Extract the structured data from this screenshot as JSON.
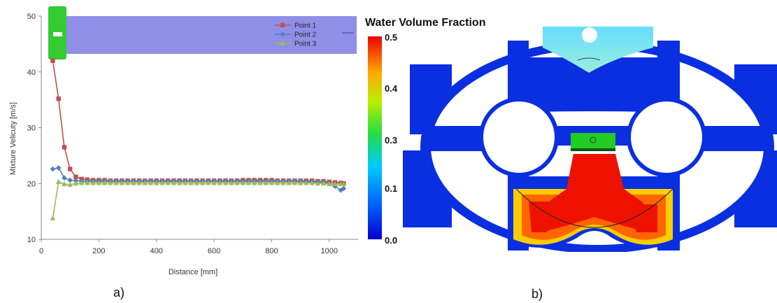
{
  "chart_data": {
    "type": "line",
    "xlabel": "Distance [mm]",
    "ylabel": "Mixture Velicuty [m/s]",
    "xlim": [
      0,
      1100
    ],
    "ylim": [
      10,
      50
    ],
    "xticks": [
      0,
      200,
      400,
      600,
      800,
      1000
    ],
    "yticks": [
      10,
      20,
      30,
      40,
      50
    ],
    "grid": false,
    "legend_position": "top-right",
    "series": [
      {
        "name": "Point 1",
        "color": "#c0504d",
        "marker": "square",
        "x": [
          40,
          60,
          80,
          100,
          120,
          140,
          160,
          180,
          200,
          220,
          240,
          260,
          280,
          300,
          320,
          340,
          360,
          380,
          400,
          420,
          440,
          460,
          480,
          500,
          520,
          540,
          560,
          580,
          600,
          620,
          640,
          660,
          680,
          700,
          720,
          740,
          760,
          780,
          800,
          820,
          840,
          860,
          880,
          900,
          920,
          940,
          960,
          980,
          1000,
          1020,
          1040,
          1050
        ],
        "y": [
          42.0,
          35.2,
          26.5,
          22.6,
          21.2,
          20.8,
          20.7,
          20.6,
          20.6,
          20.6,
          20.5,
          20.5,
          20.5,
          20.5,
          20.5,
          20.5,
          20.5,
          20.5,
          20.5,
          20.5,
          20.5,
          20.5,
          20.5,
          20.5,
          20.5,
          20.5,
          20.5,
          20.5,
          20.5,
          20.5,
          20.5,
          20.5,
          20.5,
          20.6,
          20.6,
          20.6,
          20.6,
          20.6,
          20.6,
          20.5,
          20.5,
          20.5,
          20.5,
          20.5,
          20.5,
          20.5,
          20.4,
          20.4,
          20.3,
          20.2,
          20.1,
          20.0
        ]
      },
      {
        "name": "Point 2",
        "color": "#4f81bd",
        "marker": "diamond",
        "x": [
          40,
          60,
          80,
          100,
          120,
          140,
          160,
          180,
          200,
          220,
          240,
          260,
          280,
          300,
          320,
          340,
          360,
          380,
          400,
          420,
          440,
          460,
          480,
          500,
          520,
          540,
          560,
          580,
          600,
          620,
          640,
          660,
          680,
          700,
          720,
          740,
          760,
          780,
          800,
          820,
          840,
          860,
          880,
          900,
          920,
          940,
          960,
          980,
          1000,
          1020,
          1040,
          1050
        ],
        "y": [
          22.6,
          22.8,
          21.0,
          20.6,
          20.5,
          20.4,
          20.4,
          20.4,
          20.4,
          20.4,
          20.4,
          20.4,
          20.4,
          20.4,
          20.4,
          20.4,
          20.4,
          20.4,
          20.4,
          20.4,
          20.4,
          20.4,
          20.4,
          20.4,
          20.4,
          20.4,
          20.4,
          20.4,
          20.4,
          20.4,
          20.4,
          20.4,
          20.4,
          20.4,
          20.4,
          20.4,
          20.4,
          20.4,
          20.4,
          20.4,
          20.4,
          20.4,
          20.4,
          20.4,
          20.3,
          20.3,
          20.3,
          20.2,
          20.1,
          19.5,
          18.8,
          19.1
        ]
      },
      {
        "name": "Point 3",
        "color": "#9bbb59",
        "marker": "triangle",
        "x": [
          40,
          60,
          80,
          100,
          120,
          140,
          160,
          180,
          200,
          220,
          240,
          260,
          280,
          300,
          320,
          340,
          360,
          380,
          400,
          420,
          440,
          460,
          480,
          500,
          520,
          540,
          560,
          580,
          600,
          620,
          640,
          660,
          680,
          700,
          720,
          740,
          760,
          780,
          800,
          820,
          840,
          860,
          880,
          900,
          920,
          940,
          960,
          980,
          1000,
          1020,
          1040,
          1050
        ],
        "y": [
          13.8,
          20.3,
          19.9,
          19.8,
          20.0,
          20.1,
          20.1,
          20.1,
          20.1,
          20.1,
          20.1,
          20.1,
          20.1,
          20.1,
          20.1,
          20.1,
          20.1,
          20.1,
          20.1,
          20.1,
          20.1,
          20.1,
          20.1,
          20.1,
          20.1,
          20.1,
          20.1,
          20.1,
          20.1,
          20.1,
          20.1,
          20.1,
          20.1,
          20.1,
          20.1,
          20.1,
          20.1,
          20.1,
          20.1,
          20.1,
          20.1,
          20.1,
          20.1,
          20.1,
          20.1,
          20.1,
          20.0,
          20.0,
          19.9,
          19.9,
          19.9,
          19.9
        ]
      }
    ]
  },
  "colorbar": {
    "title": "Water Volume Fraction",
    "ticks": [
      "0.5",
      "0.4",
      "0.3",
      "0.1",
      "0.0"
    ]
  },
  "captions": {
    "left": "a)",
    "right": "b)"
  },
  "colors": {
    "inset_band": "#8f8fe8",
    "inset_pipe": "#33cc33",
    "cfd_blue": "#0a2fe0"
  }
}
